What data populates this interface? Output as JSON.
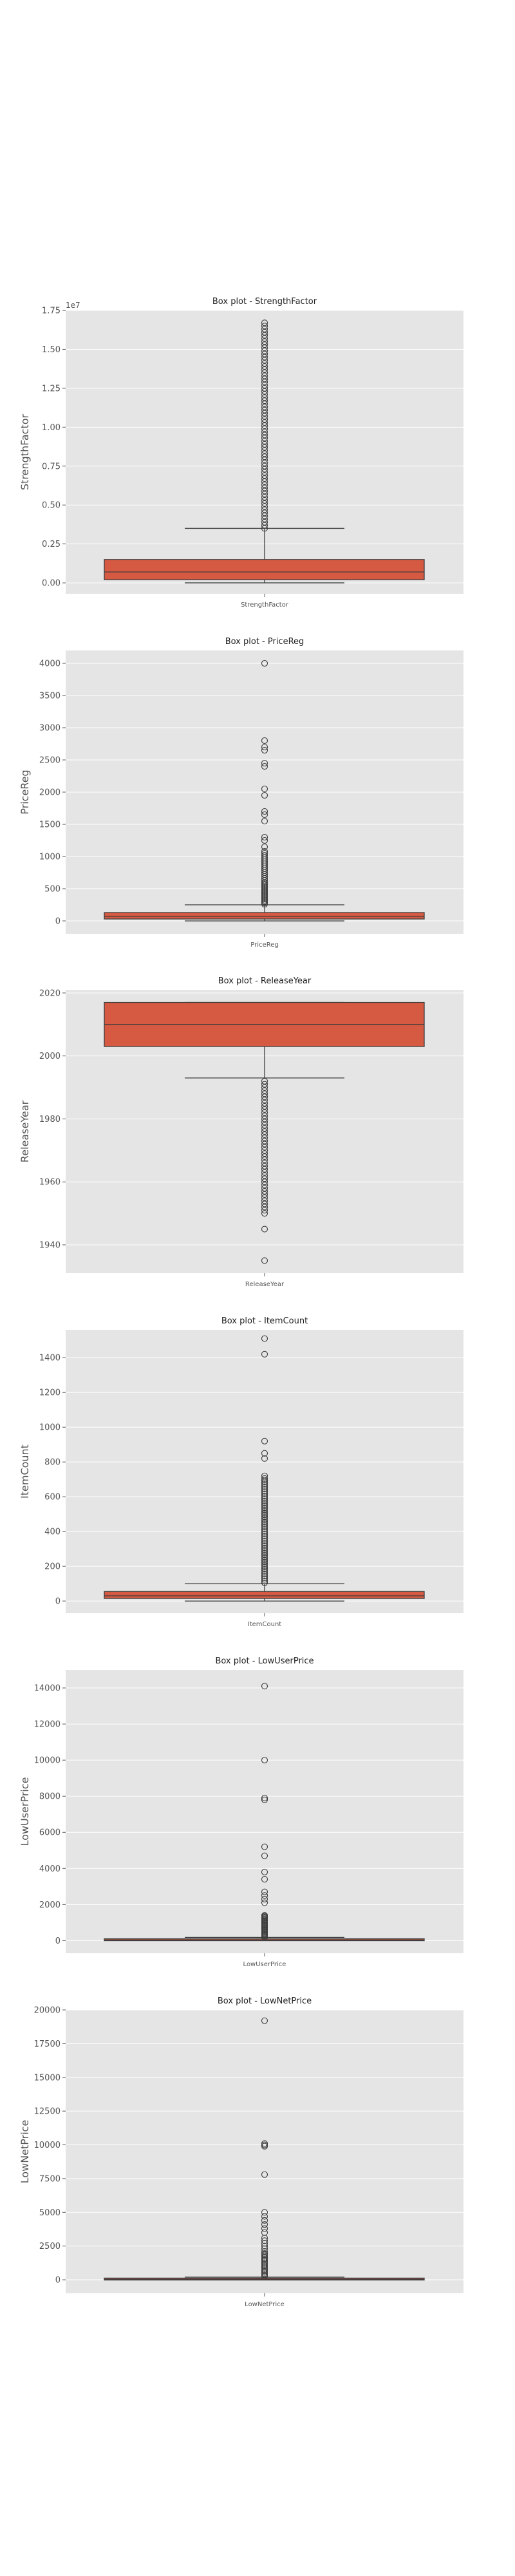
{
  "chart_data": [
    {
      "type": "box",
      "title": "Box plot - StrengthFactor",
      "ylabel": "StrengthFactor",
      "xlabel": "StrengthFactor",
      "offset_label": "1e7",
      "yticks": [
        0.0,
        0.25,
        0.5,
        0.75,
        1.0,
        1.25,
        1.5,
        1.75
      ],
      "ytick_labels": [
        "0.00",
        "0.25",
        "0.50",
        "0.75",
        "1.00",
        "1.25",
        "1.50",
        "1.75"
      ],
      "ylim": [
        -0.07,
        1.75
      ],
      "box": {
        "whisker_low": 0.0,
        "q1": 0.02,
        "median": 0.07,
        "q3": 0.15,
        "whisker_high": 0.35
      },
      "outliers": [
        0.35,
        0.37,
        0.39,
        0.41,
        0.43,
        0.45,
        0.47,
        0.49,
        0.51,
        0.53,
        0.55,
        0.57,
        0.59,
        0.61,
        0.63,
        0.65,
        0.67,
        0.69,
        0.71,
        0.73,
        0.75,
        0.77,
        0.79,
        0.81,
        0.83,
        0.85,
        0.87,
        0.89,
        0.91,
        0.93,
        0.95,
        0.97,
        0.99,
        1.01,
        1.03,
        1.05,
        1.07,
        1.09,
        1.11,
        1.13,
        1.15,
        1.17,
        1.19,
        1.21,
        1.23,
        1.25,
        1.27,
        1.29,
        1.31,
        1.33,
        1.35,
        1.37,
        1.39,
        1.41,
        1.43,
        1.45,
        1.47,
        1.49,
        1.51,
        1.53,
        1.55,
        1.57,
        1.59,
        1.61,
        1.63,
        1.65,
        1.67
      ]
    },
    {
      "type": "box",
      "title": "Box plot - PriceReg",
      "ylabel": "PriceReg",
      "xlabel": "PriceReg",
      "yticks": [
        0,
        500,
        1000,
        1500,
        2000,
        2500,
        3000,
        3500,
        4000
      ],
      "ytick_labels": [
        "0",
        "500",
        "1000",
        "1500",
        "2000",
        "2500",
        "3000",
        "3500",
        "4000"
      ],
      "ylim": [
        -200,
        4200
      ],
      "box": {
        "whisker_low": 0,
        "q1": 30,
        "median": 70,
        "q3": 130,
        "whisker_high": 250
      },
      "outliers": [
        260,
        280,
        300,
        320,
        340,
        360,
        380,
        400,
        420,
        440,
        460,
        480,
        500,
        520,
        540,
        560,
        580,
        600,
        630,
        660,
        690,
        720,
        750,
        780,
        810,
        840,
        870,
        900,
        930,
        960,
        990,
        1020,
        1050,
        1080,
        1150,
        1250,
        1300,
        1550,
        1650,
        1700,
        1950,
        2050,
        2400,
        2450,
        2650,
        2700,
        2800,
        4000
      ]
    },
    {
      "type": "box",
      "title": "Box plot - ReleaseYear",
      "ylabel": "ReleaseYear",
      "xlabel": "ReleaseYear",
      "yticks": [
        1940,
        1960,
        1980,
        2000,
        2020
      ],
      "ytick_labels": [
        "1940",
        "1960",
        "1980",
        "2000",
        "2020"
      ],
      "ylim": [
        1931,
        2021
      ],
      "box": {
        "whisker_low": 1993,
        "q1": 2003,
        "median": 2010,
        "q3": 2017,
        "whisker_high": 2017
      },
      "outliers": [
        1992,
        1991,
        1990,
        1989,
        1988,
        1987,
        1986,
        1985,
        1984,
        1983,
        1982,
        1981,
        1980,
        1979,
        1978,
        1977,
        1976,
        1975,
        1974,
        1973,
        1972,
        1971,
        1970,
        1969,
        1968,
        1967,
        1966,
        1965,
        1964,
        1963,
        1962,
        1961,
        1960,
        1959,
        1958,
        1957,
        1956,
        1955,
        1954,
        1953,
        1952,
        1951,
        1950,
        1945,
        1935
      ]
    },
    {
      "type": "box",
      "title": "Box plot - ItemCount",
      "ylabel": "ItemCount",
      "xlabel": "ItemCount",
      "yticks": [
        0,
        200,
        400,
        600,
        800,
        1000,
        1200,
        1400
      ],
      "ytick_labels": [
        "0",
        "200",
        "400",
        "600",
        "800",
        "1000",
        "1200",
        "1400"
      ],
      "ylim": [
        -70,
        1560
      ],
      "box": {
        "whisker_low": 0,
        "q1": 15,
        "median": 30,
        "q3": 55,
        "whisker_high": 100
      },
      "outliers": [
        105,
        115,
        125,
        135,
        145,
        155,
        165,
        175,
        185,
        195,
        205,
        215,
        225,
        235,
        245,
        255,
        265,
        275,
        285,
        295,
        305,
        315,
        325,
        335,
        345,
        355,
        365,
        375,
        385,
        395,
        405,
        415,
        425,
        435,
        445,
        455,
        465,
        475,
        485,
        495,
        505,
        515,
        525,
        535,
        545,
        555,
        565,
        575,
        585,
        595,
        605,
        615,
        625,
        635,
        645,
        655,
        665,
        675,
        685,
        695,
        705,
        720,
        820,
        850,
        920,
        1420,
        1510
      ]
    },
    {
      "type": "box",
      "title": "Box plot - LowUserPrice",
      "ylabel": "LowUserPrice",
      "xlabel": "LowUserPrice",
      "yticks": [
        0,
        2000,
        4000,
        6000,
        8000,
        10000,
        12000,
        14000
      ],
      "ytick_labels": [
        "0",
        "2000",
        "4000",
        "6000",
        "8000",
        "10000",
        "12000",
        "14000"
      ],
      "ylim": [
        -700,
        15000
      ],
      "box": {
        "whisker_low": 0,
        "q1": 20,
        "median": 40,
        "q3": 80,
        "whisker_high": 180
      },
      "outliers": [
        200,
        250,
        300,
        350,
        400,
        450,
        500,
        550,
        600,
        650,
        700,
        750,
        800,
        850,
        900,
        950,
        1000,
        1050,
        1100,
        1150,
        1200,
        1250,
        1300,
        1350,
        1400,
        2100,
        2300,
        2500,
        2700,
        3400,
        3800,
        4700,
        5200,
        7800,
        7900,
        10000,
        14100
      ]
    },
    {
      "type": "box",
      "title": "Box plot - LowNetPrice",
      "ylabel": "LowNetPrice",
      "xlabel": "LowNetPrice",
      "yticks": [
        0,
        2500,
        5000,
        7500,
        10000,
        12500,
        15000,
        17500,
        20000
      ],
      "ytick_labels": [
        "0",
        "2500",
        "5000",
        "7500",
        "10000",
        "12500",
        "15000",
        "17500",
        "20000"
      ],
      "ylim": [
        -1000,
        20000
      ],
      "box": {
        "whisker_low": 0,
        "q1": 20,
        "median": 40,
        "q3": 90,
        "whisker_high": 200
      },
      "outliers": [
        250,
        350,
        450,
        550,
        650,
        750,
        850,
        950,
        1050,
        1150,
        1250,
        1350,
        1450,
        1550,
        1650,
        1750,
        1850,
        1950,
        2100,
        2300,
        2500,
        2700,
        2900,
        3100,
        3500,
        3800,
        4100,
        4400,
        4700,
        5000,
        7800,
        9900,
        10000,
        10100,
        19200
      ]
    }
  ],
  "colors": {
    "box_fill": "#d65a42",
    "box_edge": "#3c3c3c",
    "panel_bg": "#e5e5e5",
    "grid": "#ffffff",
    "text": "#555555"
  }
}
